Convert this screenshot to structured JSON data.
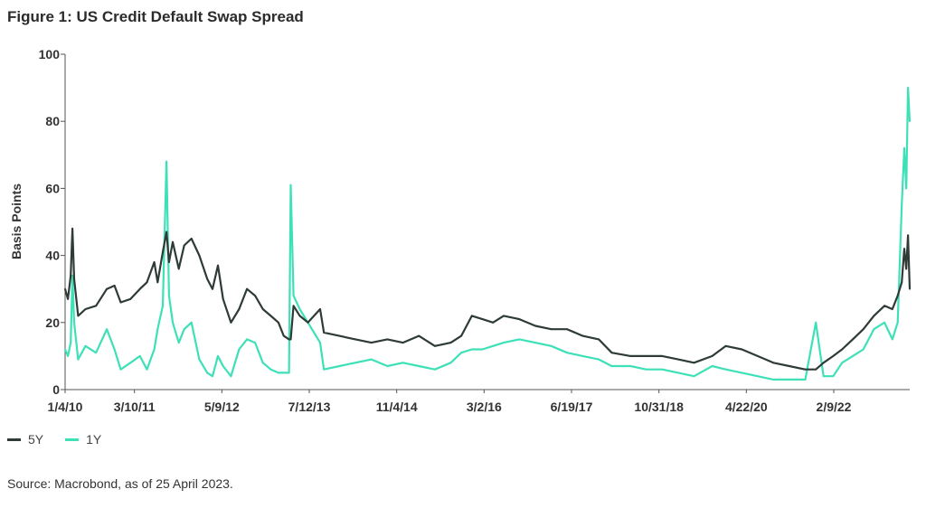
{
  "figure_title": "Figure 1: US Credit Default Swap Spread",
  "source": "Source: Macrobond, as of 25 April 2023.",
  "colors": {
    "s5y": "#2f3b35",
    "s1y": "#3ee0b8",
    "axis": "#555555"
  },
  "chart_data": {
    "type": "line",
    "title": "Figure 1: US Credit Default Swap Spread",
    "xlabel": "",
    "ylabel": "Basis Points",
    "ylim": [
      0,
      100
    ],
    "yticks": [
      0,
      20,
      40,
      60,
      80,
      100
    ],
    "x_ticks": [
      "1/4/10",
      "3/10/11",
      "5/9/12",
      "7/12/13",
      "11/4/14",
      "3/2/16",
      "6/19/17",
      "10/31/18",
      "4/22/20",
      "2/9/22"
    ],
    "xlim": [
      "2010-01-04",
      "2023-04-25"
    ],
    "grid": false,
    "legend_position": "bottom-left",
    "series": [
      {
        "name": "5Y",
        "color": "#2f3b35",
        "points": [
          [
            "2010-01-04",
            30
          ],
          [
            "2010-01-20",
            27
          ],
          [
            "2010-02-05",
            34
          ],
          [
            "2010-02-15",
            48
          ],
          [
            "2010-02-25",
            33
          ],
          [
            "2010-03-20",
            22
          ],
          [
            "2010-05-01",
            24
          ],
          [
            "2010-07-01",
            25
          ],
          [
            "2010-09-01",
            30
          ],
          [
            "2010-10-15",
            31
          ],
          [
            "2010-11-20",
            26
          ],
          [
            "2011-01-15",
            27
          ],
          [
            "2011-03-10",
            30
          ],
          [
            "2011-04-20",
            32
          ],
          [
            "2011-06-01",
            38
          ],
          [
            "2011-06-20",
            32
          ],
          [
            "2011-07-20",
            41
          ],
          [
            "2011-08-10",
            47
          ],
          [
            "2011-08-25",
            38
          ],
          [
            "2011-09-15",
            44
          ],
          [
            "2011-10-20",
            36
          ],
          [
            "2011-11-20",
            43
          ],
          [
            "2012-01-01",
            45
          ],
          [
            "2012-02-15",
            40
          ],
          [
            "2012-04-01",
            33
          ],
          [
            "2012-05-01",
            30
          ],
          [
            "2012-06-01",
            37
          ],
          [
            "2012-07-01",
            27
          ],
          [
            "2012-08-15",
            20
          ],
          [
            "2012-10-01",
            24
          ],
          [
            "2012-11-15",
            30
          ],
          [
            "2013-01-01",
            28
          ],
          [
            "2013-02-15",
            24
          ],
          [
            "2013-04-01",
            22
          ],
          [
            "2013-05-15",
            20
          ],
          [
            "2013-06-15",
            16
          ],
          [
            "2013-07-15",
            15
          ],
          [
            "2013-07-25",
            15
          ],
          [
            "2013-08-10",
            25
          ],
          [
            "2013-09-15",
            22
          ],
          [
            "2013-11-01",
            20
          ],
          [
            "2014-01-10",
            24
          ],
          [
            "2014-02-01",
            17
          ],
          [
            "2014-05-01",
            16
          ],
          [
            "2014-08-01",
            15
          ],
          [
            "2014-11-01",
            14
          ],
          [
            "2015-02-01",
            15
          ],
          [
            "2015-05-01",
            14
          ],
          [
            "2015-08-01",
            16
          ],
          [
            "2015-11-01",
            13
          ],
          [
            "2016-02-01",
            14
          ],
          [
            "2016-04-01",
            16
          ],
          [
            "2016-06-01",
            22
          ],
          [
            "2016-08-01",
            21
          ],
          [
            "2016-10-01",
            20
          ],
          [
            "2016-12-01",
            22
          ],
          [
            "2017-03-01",
            21
          ],
          [
            "2017-06-01",
            19
          ],
          [
            "2017-09-01",
            18
          ],
          [
            "2017-12-01",
            18
          ],
          [
            "2018-03-01",
            16
          ],
          [
            "2018-06-01",
            15
          ],
          [
            "2018-08-15",
            11
          ],
          [
            "2018-12-01",
            10
          ],
          [
            "2019-03-01",
            10
          ],
          [
            "2019-06-01",
            10
          ],
          [
            "2019-09-01",
            9
          ],
          [
            "2019-12-01",
            8
          ],
          [
            "2020-03-15",
            10
          ],
          [
            "2020-06-01",
            13
          ],
          [
            "2020-09-01",
            12
          ],
          [
            "2020-12-01",
            10
          ],
          [
            "2021-03-01",
            8
          ],
          [
            "2021-06-01",
            7
          ],
          [
            "2021-09-01",
            6
          ],
          [
            "2021-11-01",
            6
          ],
          [
            "2021-12-15",
            8
          ],
          [
            "2022-02-09",
            10
          ],
          [
            "2022-04-01",
            12
          ],
          [
            "2022-06-01",
            15
          ],
          [
            "2022-08-01",
            18
          ],
          [
            "2022-10-01",
            22
          ],
          [
            "2022-12-01",
            25
          ],
          [
            "2023-01-15",
            24
          ],
          [
            "2023-02-15",
            28
          ],
          [
            "2023-03-10",
            32
          ],
          [
            "2023-03-25",
            42
          ],
          [
            "2023-04-05",
            36
          ],
          [
            "2023-04-15",
            46
          ],
          [
            "2023-04-25",
            30
          ]
        ]
      },
      {
        "name": "1Y",
        "color": "#3ee0b8",
        "points": [
          [
            "2010-01-04",
            12
          ],
          [
            "2010-01-20",
            10
          ],
          [
            "2010-02-05",
            14
          ],
          [
            "2010-02-15",
            34
          ],
          [
            "2010-02-25",
            20
          ],
          [
            "2010-03-20",
            9
          ],
          [
            "2010-05-01",
            13
          ],
          [
            "2010-07-01",
            11
          ],
          [
            "2010-09-01",
            18
          ],
          [
            "2010-10-15",
            12
          ],
          [
            "2010-11-20",
            6
          ],
          [
            "2011-01-15",
            8
          ],
          [
            "2011-03-10",
            10
          ],
          [
            "2011-04-20",
            6
          ],
          [
            "2011-06-01",
            12
          ],
          [
            "2011-06-20",
            18
          ],
          [
            "2011-07-20",
            25
          ],
          [
            "2011-08-10",
            68
          ],
          [
            "2011-08-25",
            28
          ],
          [
            "2011-09-15",
            20
          ],
          [
            "2011-10-20",
            14
          ],
          [
            "2011-11-20",
            18
          ],
          [
            "2012-01-01",
            20
          ],
          [
            "2012-02-15",
            9
          ],
          [
            "2012-04-01",
            5
          ],
          [
            "2012-05-01",
            4
          ],
          [
            "2012-06-01",
            10
          ],
          [
            "2012-07-01",
            7
          ],
          [
            "2012-08-15",
            4
          ],
          [
            "2012-10-01",
            12
          ],
          [
            "2012-11-15",
            15
          ],
          [
            "2013-01-01",
            14
          ],
          [
            "2013-02-15",
            8
          ],
          [
            "2013-04-01",
            6
          ],
          [
            "2013-05-15",
            5
          ],
          [
            "2013-06-15",
            5
          ],
          [
            "2013-07-15",
            5
          ],
          [
            "2013-07-25",
            61
          ],
          [
            "2013-08-10",
            28
          ],
          [
            "2013-09-15",
            24
          ],
          [
            "2013-11-01",
            20
          ],
          [
            "2014-01-10",
            14
          ],
          [
            "2014-02-01",
            6
          ],
          [
            "2014-05-01",
            7
          ],
          [
            "2014-08-01",
            8
          ],
          [
            "2014-11-01",
            9
          ],
          [
            "2015-02-01",
            7
          ],
          [
            "2015-05-01",
            8
          ],
          [
            "2015-08-01",
            7
          ],
          [
            "2015-11-01",
            6
          ],
          [
            "2016-02-01",
            8
          ],
          [
            "2016-04-01",
            11
          ],
          [
            "2016-06-01",
            12
          ],
          [
            "2016-08-01",
            12
          ],
          [
            "2016-10-01",
            13
          ],
          [
            "2016-12-01",
            14
          ],
          [
            "2017-03-01",
            15
          ],
          [
            "2017-06-01",
            14
          ],
          [
            "2017-09-01",
            13
          ],
          [
            "2017-12-01",
            11
          ],
          [
            "2018-03-01",
            10
          ],
          [
            "2018-06-01",
            9
          ],
          [
            "2018-08-15",
            7
          ],
          [
            "2018-12-01",
            7
          ],
          [
            "2019-03-01",
            6
          ],
          [
            "2019-06-01",
            6
          ],
          [
            "2019-09-01",
            5
          ],
          [
            "2019-12-01",
            4
          ],
          [
            "2020-03-15",
            7
          ],
          [
            "2020-06-01",
            6
          ],
          [
            "2020-09-01",
            5
          ],
          [
            "2020-12-01",
            4
          ],
          [
            "2021-03-01",
            3
          ],
          [
            "2021-06-01",
            3
          ],
          [
            "2021-09-01",
            3
          ],
          [
            "2021-11-01",
            20
          ],
          [
            "2021-12-15",
            4
          ],
          [
            "2022-02-09",
            4
          ],
          [
            "2022-04-01",
            8
          ],
          [
            "2022-06-01",
            10
          ],
          [
            "2022-08-01",
            12
          ],
          [
            "2022-10-01",
            18
          ],
          [
            "2022-12-01",
            20
          ],
          [
            "2023-01-15",
            15
          ],
          [
            "2023-02-15",
            20
          ],
          [
            "2023-03-10",
            55
          ],
          [
            "2023-03-25",
            72
          ],
          [
            "2023-04-05",
            60
          ],
          [
            "2023-04-15",
            90
          ],
          [
            "2023-04-25",
            80
          ]
        ]
      }
    ]
  }
}
